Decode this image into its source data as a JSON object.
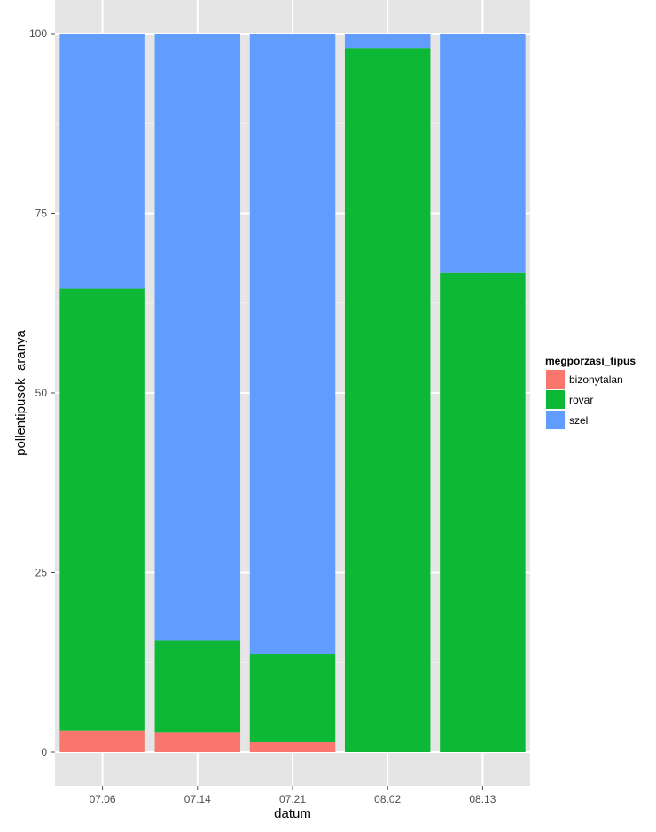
{
  "chart_data": {
    "type": "bar",
    "stacked": true,
    "categories": [
      "07.06",
      "07.14",
      "07.21",
      "08.02",
      "08.13"
    ],
    "series": [
      {
        "name": "bizonytalan",
        "color": "#F8766D",
        "values": [
          3.0,
          2.8,
          1.4,
          0.0,
          0.0
        ]
      },
      {
        "name": "rovar",
        "color": "#0CB836",
        "values": [
          61.5,
          12.7,
          12.3,
          98.0,
          66.7
        ]
      },
      {
        "name": "szel",
        "color": "#619CFF",
        "values": [
          35.5,
          84.5,
          86.3,
          2.0,
          33.3
        ]
      }
    ],
    "xlabel": "datum",
    "ylabel": "pollentipusok_aranya",
    "ylim": [
      0,
      100
    ],
    "yticks": [
      "0",
      "25",
      "50",
      "75",
      "100"
    ],
    "legend_title": "megporzasi_tipus",
    "legend_position": "right",
    "grid": true
  }
}
